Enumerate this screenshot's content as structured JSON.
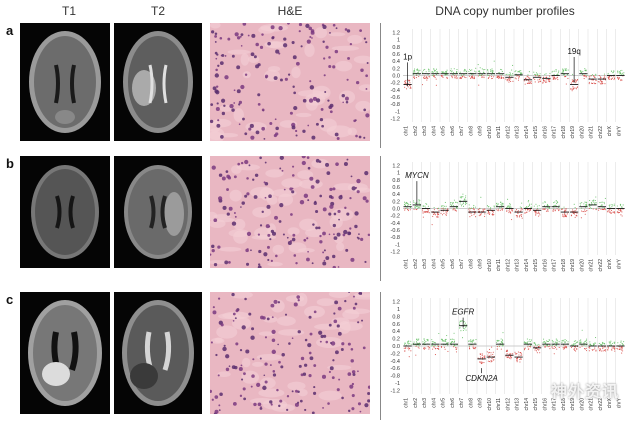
{
  "headers": {
    "t1": "T1",
    "t2": "T2",
    "he": "H&E",
    "cnv": "DNA copy number profiles"
  },
  "rows": [
    {
      "label": "a",
      "annotations": [
        {
          "text": "1p",
          "chr": 0,
          "arrow_y": -0.3,
          "label_y": 0.45
        },
        {
          "text": "19q",
          "chr": 18,
          "arrow_y": -0.2,
          "label_y": 0.6
        }
      ]
    },
    {
      "label": "b",
      "annotations": [
        {
          "text": "MYCN",
          "chr": 1,
          "arrow_y": 0.1,
          "label_y": 0.85
        }
      ]
    },
    {
      "label": "c",
      "annotations": [
        {
          "text": "EGFR",
          "chr": 6,
          "arrow_y": 0.5,
          "label_y": 0.85
        },
        {
          "text": "CDKN2A",
          "chr": 8,
          "arrow_y": -0.6,
          "label_y": -0.95
        }
      ]
    }
  ],
  "chart_data": [
    {
      "type": "scatter",
      "ylim": [
        -1.3,
        1.3
      ],
      "yticks": [
        "1.2",
        "1",
        "0.8",
        "0.6",
        "0.4",
        "0.2",
        "0.0",
        "-0.2",
        "-0.4",
        "-0.6",
        "-0.8",
        "-1",
        "-1.2"
      ],
      "chromosomes": [
        "chr1",
        "chr2",
        "chr3",
        "chr4",
        "chr5",
        "chr6",
        "chr7",
        "chr8",
        "chr9",
        "chr10",
        "chr11",
        "chr12",
        "chr13",
        "chr14",
        "chr15",
        "chr16",
        "chr17",
        "chr18",
        "chr19",
        "chr20",
        "chr21",
        "chr22",
        "chrX",
        "chrY"
      ],
      "segment_means": [
        -0.25,
        0.05,
        0.05,
        0.05,
        0.05,
        0.05,
        0.05,
        0.05,
        0.05,
        0.05,
        0.05,
        -0.05,
        0.02,
        -0.12,
        -0.05,
        -0.08,
        0.0,
        0.05,
        -0.25,
        0.05,
        -0.1,
        -0.1,
        0.0,
        0.0
      ]
    },
    {
      "type": "scatter",
      "ylim": [
        -1.3,
        1.3
      ],
      "yticks": [
        "1.2",
        "1",
        "0.8",
        "0.6",
        "0.4",
        "0.2",
        "0.0",
        "-0.2",
        "-0.4",
        "-0.6",
        "-0.8",
        "-1",
        "-1.2"
      ],
      "chromosomes": [
        "chr1",
        "chr2",
        "chr3",
        "chr4",
        "chr5",
        "chr6",
        "chr7",
        "chr8",
        "chr9",
        "chr10",
        "chr11",
        "chr12",
        "chr13",
        "chr14",
        "chr15",
        "chr16",
        "chr17",
        "chr18",
        "chr19",
        "chr20",
        "chr21",
        "chr22",
        "chrX",
        "chrY"
      ],
      "segment_means": [
        0.05,
        0.1,
        0.0,
        -0.1,
        -0.05,
        0.05,
        0.2,
        -0.1,
        -0.1,
        -0.05,
        0.05,
        0.0,
        -0.1,
        0.0,
        -0.05,
        0.05,
        0.05,
        -0.1,
        -0.1,
        0.05,
        0.1,
        0.05,
        0.0,
        0.0
      ]
    },
    {
      "type": "scatter",
      "ylim": [
        -1.3,
        1.3
      ],
      "yticks": [
        "1.2",
        "1",
        "0.8",
        "0.6",
        "0.4",
        "0.2",
        "0.0",
        "-0.2",
        "-0.4",
        "-0.6",
        "-0.8",
        "-1",
        "-1.2"
      ],
      "chromosomes": [
        "chr1",
        "chr2",
        "chr3",
        "chr4",
        "chr5",
        "chr6",
        "chr7",
        "chr8",
        "chr9",
        "chr10",
        "chr11",
        "chr12",
        "chr13",
        "chr14",
        "chr15",
        "chr16",
        "chr17",
        "chr18",
        "chr19",
        "chr20",
        "chr21",
        "chr22",
        "chrX",
        "chrY"
      ],
      "segment_means": [
        0.0,
        0.05,
        0.05,
        0.05,
        0.05,
        0.05,
        0.55,
        0.05,
        -0.35,
        -0.3,
        0.05,
        -0.25,
        -0.3,
        0.05,
        -0.05,
        0.05,
        0.05,
        0.05,
        0.0,
        0.05,
        0.0,
        0.0,
        0.0,
        0.0
      ]
    }
  ],
  "watermark": "神外资讯"
}
